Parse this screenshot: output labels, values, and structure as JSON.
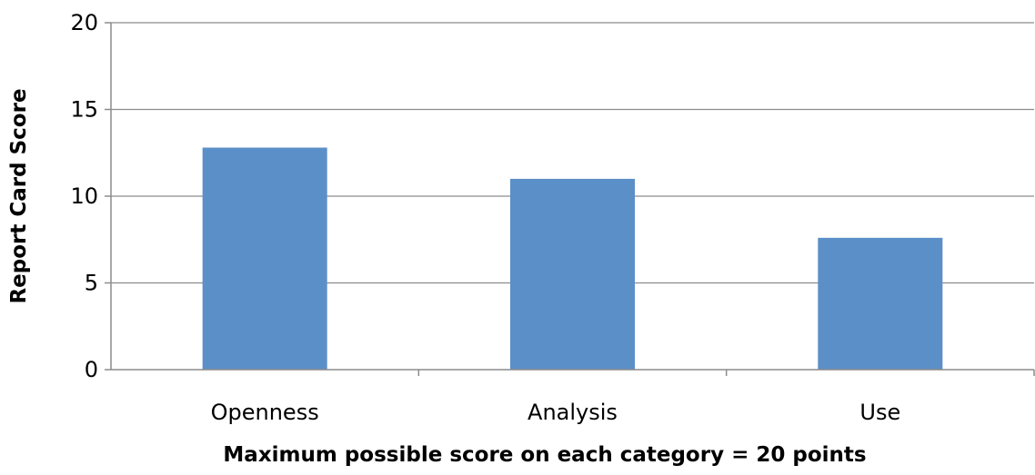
{
  "chart_data": {
    "type": "bar",
    "title": "",
    "xlabel": "Maximum possible score on each category = 20 points",
    "ylabel": "Report Card Score",
    "categories": [
      "Openness",
      "Analysis",
      "Use"
    ],
    "values": [
      12.8,
      11.0,
      7.6
    ],
    "ylim": [
      0,
      20
    ],
    "yticks": [
      "0",
      "5",
      "10",
      "15",
      "20"
    ],
    "grid": true,
    "legend": "none",
    "bar_color": "#5B8FC7",
    "grid_color": "#8C8C8C"
  }
}
